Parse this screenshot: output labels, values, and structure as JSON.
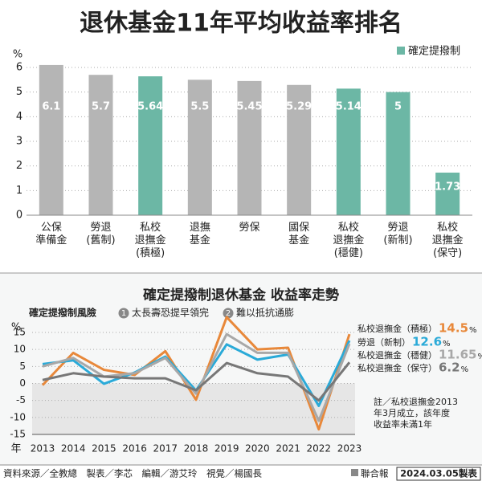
{
  "chart_data": [
    {
      "type": "bar",
      "title": "退休基金11年平均收益率排名",
      "y_label": "%",
      "categories": [
        "公保\n準備金",
        "勞退\n(舊制)",
        "私校\n退撫金\n(積極)",
        "退撫\n基金",
        "勞保",
        "國保\n基金",
        "私校\n退撫金\n(穩健)",
        "勞退\n(新制)",
        "私校\n退撫金\n(保守)"
      ],
      "values": [
        6.1,
        5.7,
        5.64,
        5.5,
        5.45,
        5.29,
        5.14,
        5,
        1.73
      ],
      "colors": [
        "#b5b5b5",
        "#b5b5b5",
        "#6cb7a5",
        "#b5b5b5",
        "#b5b5b5",
        "#b5b5b5",
        "#6cb7a5",
        "#6cb7a5",
        "#6cb7a5"
      ],
      "legend": {
        "label": "確定提撥制",
        "color": "#6cb7a5"
      },
      "ylim": [
        0,
        6.2
      ],
      "yticks": [
        0,
        1,
        2,
        3,
        4,
        5,
        6
      ],
      "grid": true
    },
    {
      "type": "line",
      "title": "確定提撥制退休基金  收益率走勢",
      "subtitle": "確定提撥制風險",
      "risks": [
        {
          "number": "1",
          "text": "太長壽恐提早領完"
        },
        {
          "number": "2",
          "text": "難以抵抗通膨"
        }
      ],
      "y_label": "%",
      "x_label": "年",
      "categories": [
        "2013",
        "2014",
        "2015",
        "2016",
        "2017",
        "2018",
        "2019",
        "2020",
        "2021",
        "2022",
        "2023"
      ],
      "series": [
        {
          "name": "私校退撫金（積極）",
          "color": "#e8883a",
          "values": [
            -0.5,
            9,
            4,
            2.5,
            9.5,
            -4.8,
            19.5,
            10,
            10.5,
            -13.5,
            14.5
          ]
        },
        {
          "name": "勞退（新制）",
          "color": "#2aaad8",
          "values": [
            5.7,
            6.8,
            -0.1,
            3.2,
            7.9,
            -2.1,
            11.5,
            7,
            8.5,
            -6.6,
            12.6
          ]
        },
        {
          "name": "私校退撫金（穩健）",
          "color": "#a8a8a8",
          "values": [
            5,
            7.5,
            2,
            3,
            7.5,
            -3,
            14.5,
            9,
            9,
            -11,
            11.65
          ]
        },
        {
          "name": "私校退撫金（保守）",
          "color": "#777777",
          "values": [
            1,
            3,
            2,
            1.5,
            1.5,
            -2,
            6,
            3,
            2,
            -5,
            6.2
          ]
        }
      ],
      "ylim": [
        -15,
        17
      ],
      "yticks": [
        -15,
        -10,
        -5,
        0,
        5,
        10,
        15
      ],
      "grid": true,
      "note": "註／私校退撫金2013\n年3月成立，該年度\n收益率未滿1年"
    }
  ],
  "footer": {
    "credits": "資料來源／全教總　製表／李芯　編輯／游艾玲　視覺／楊國長",
    "publisher": "聯合報",
    "date": "2024.03.05製表"
  }
}
